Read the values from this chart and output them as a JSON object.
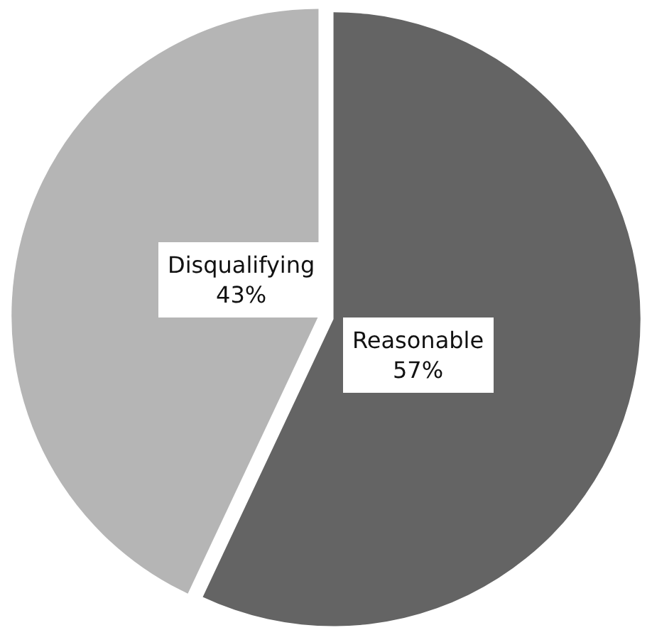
{
  "chart_data": {
    "type": "pie",
    "categories": [
      "Reasonable",
      "Disqualifying"
    ],
    "values": [
      57,
      43
    ],
    "value_labels": [
      "57%",
      "43%"
    ],
    "colors": [
      "#646464",
      "#b5b5b5"
    ],
    "legend": false
  }
}
